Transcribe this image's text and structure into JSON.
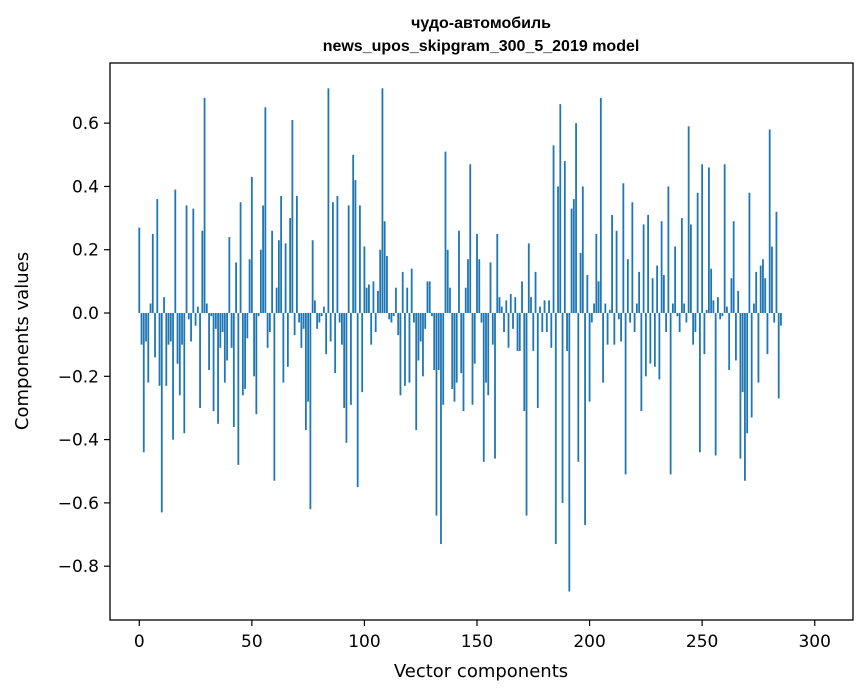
{
  "chart_data": {
    "type": "bar",
    "title": "чудо-автомобиль",
    "subtitle": "news_upos_skipgram_300_5_2019 model",
    "xlabel": "Vector components",
    "ylabel": "Components values",
    "xlim": [
      -13,
      317
    ],
    "ylim": [
      -0.97,
      0.79
    ],
    "xticks": [
      0,
      50,
      100,
      150,
      200,
      250,
      300
    ],
    "xtick_labels": [
      "0",
      "50",
      "100",
      "150",
      "200",
      "250",
      "300"
    ],
    "yticks": [
      -0.8,
      -0.6,
      -0.4,
      -0.2,
      0.0,
      0.2,
      0.4,
      0.6
    ],
    "ytick_labels": [
      "−0.8",
      "−0.6",
      "−0.4",
      "−0.2",
      "0.0",
      "0.2",
      "0.4",
      "0.6"
    ],
    "bar_color": "#1f77b4",
    "grid": false,
    "legend": false,
    "values": [
      0.27,
      -0.1,
      -0.44,
      -0.09,
      -0.22,
      0.03,
      0.25,
      -0.14,
      0.36,
      -0.23,
      -0.63,
      0.05,
      -0.23,
      -0.1,
      -0.09,
      -0.4,
      0.39,
      -0.16,
      -0.26,
      -0.1,
      -0.38,
      0.34,
      -0.02,
      -0.09,
      0.33,
      -0.04,
      0.02,
      -0.3,
      0.26,
      0.68,
      0.03,
      -0.18,
      -0.01,
      -0.31,
      -0.05,
      -0.35,
      -0.11,
      -0.06,
      -0.22,
      -0.15,
      0.24,
      -0.11,
      -0.36,
      0.16,
      -0.48,
      0.35,
      -0.26,
      -0.24,
      -0.08,
      0.17,
      0.43,
      -0.2,
      -0.32,
      -0.01,
      0.2,
      0.34,
      0.65,
      -0.11,
      -0.06,
      0.26,
      -0.53,
      0.08,
      0.23,
      0.37,
      -0.22,
      0.22,
      -0.17,
      0.3,
      0.61,
      -0.07,
      0.37,
      -0.03,
      -0.11,
      -0.05,
      -0.37,
      -0.28,
      -0.62,
      0.23,
      0.04,
      -0.05,
      -0.03,
      -0.01,
      0.02,
      -0.13,
      0.71,
      -0.09,
      0.35,
      -0.19,
      0.37,
      -0.03,
      -0.1,
      -0.3,
      -0.41,
      0.34,
      -0.29,
      0.5,
      0.42,
      -0.55,
      0.34,
      -0.25,
      0.21,
      0.08,
      0.09,
      -0.1,
      0.1,
      -0.06,
      0.07,
      0.2,
      0.71,
      0.29,
      0.18,
      -0.02,
      -0.03,
      -0.01,
      0.08,
      -0.07,
      -0.26,
      0.13,
      -0.23,
      0.08,
      -0.22,
      0.14,
      -0.03,
      -0.37,
      -0.15,
      -0.09,
      -0.2,
      -0.05,
      0.1,
      0.1,
      -0.01,
      -0.18,
      -0.64,
      -0.18,
      -0.73,
      -0.29,
      0.51,
      0.2,
      0.08,
      -0.24,
      -0.28,
      -0.22,
      0.26,
      -0.19,
      -0.31,
      0.08,
      0.17,
      0.47,
      -0.29,
      -0.16,
      0.25,
      0.17,
      -0.03,
      -0.47,
      -0.22,
      -0.26,
      0.16,
      -0.1,
      -0.46,
      0.25,
      0.05,
      0.02,
      -0.06,
      0.04,
      -0.11,
      0.06,
      -0.05,
      0.05,
      -0.12,
      -0.12,
      0.1,
      -0.31,
      -0.64,
      0.22,
      0.05,
      -0.12,
      0.13,
      -0.3,
      0.02,
      -0.06,
      0.04,
      -0.06,
      0.04,
      -0.11,
      0.53,
      -0.73,
      0.4,
      0.66,
      -0.6,
      0.48,
      -0.12,
      -0.88,
      0.33,
      0.36,
      0.6,
      -0.47,
      0.19,
      0.4,
      -0.67,
      0.12,
      -0.28,
      -0.03,
      0.03,
      0.25,
      0.1,
      0.68,
      -0.22,
      0.03,
      -0.1,
      0.01,
      0.31,
      -0.1,
      0.26,
      -0.02,
      -0.09,
      0.41,
      -0.51,
      0.17,
      -0.03,
      0.35,
      -0.06,
      0.03,
      0.13,
      -0.31,
      0.28,
      -0.2,
      0.31,
      -0.16,
      0.11,
      -0.17,
      0.15,
      -0.21,
      0.29,
      0.12,
      -0.06,
      0.4,
      -0.51,
      0.03,
      0.21,
      -0.01,
      -0.06,
      0.3,
      0.03,
      -0.03,
      0.59,
      0.28,
      -0.1,
      -0.06,
      0.38,
      -0.44,
      0.47,
      -0.13,
      0.01,
      0.46,
      0.14,
      0.04,
      -0.45,
      0.05,
      -0.02,
      -0.01,
      0.47,
      0.02,
      -0.18,
      0.11,
      0.29,
      -0.15,
      0.07,
      -0.46,
      -0.25,
      -0.53,
      -0.38,
      0.38,
      -0.33,
      0.03,
      0.13,
      -0.22,
      0.15,
      0.17,
      0.11,
      -0.13,
      0.58,
      0.21,
      -0.03,
      0.32,
      -0.27,
      -0.04
    ]
  }
}
